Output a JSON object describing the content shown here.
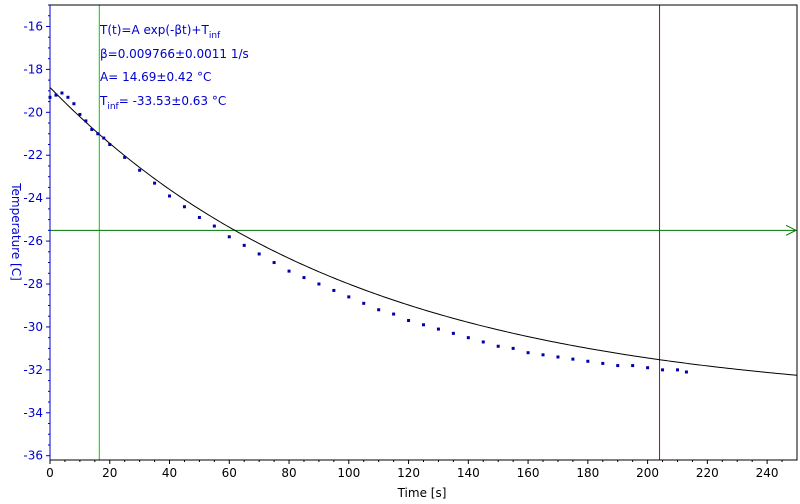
{
  "chart_data": {
    "type": "scatter",
    "xlabel": "Time [s]",
    "ylabel": "Temperature [C]",
    "xlim": [
      0,
      250
    ],
    "ylim": [
      -36.2,
      -15
    ],
    "x_ticks": [
      0,
      20,
      40,
      60,
      80,
      100,
      120,
      140,
      160,
      180,
      200,
      220,
      240
    ],
    "y_ticks": [
      -16,
      -18,
      -20,
      -22,
      -24,
      -26,
      -28,
      -30,
      -32,
      -34,
      -36
    ],
    "grid": false,
    "annotations": {
      "model_prefix": "T(t)=A exp(-βt)+T",
      "model_sub": "inf",
      "beta": "β=0.009766±0.0011 1/s",
      "amplitude": "A= 14.69±0.42 °C",
      "tinf_prefix": "T",
      "tinf_sub": "inf",
      "tinf_value": "= -33.53±0.63 °C"
    },
    "fit": {
      "A": 14.69,
      "beta": 0.009766,
      "T_inf": -33.53,
      "x_range": [
        0,
        250
      ],
      "color": "#000000"
    },
    "series": [
      {
        "color": "#0000aa",
        "x": [
          0,
          2,
          4,
          6,
          8,
          10,
          12,
          14,
          16,
          18,
          20,
          25,
          30,
          35,
          40,
          45,
          50,
          55,
          60,
          65,
          70,
          75,
          80,
          85,
          90,
          95,
          100,
          105,
          110,
          115,
          120,
          125,
          130,
          135,
          140,
          145,
          150,
          155,
          160,
          165,
          170,
          175,
          180,
          185,
          190,
          195,
          200,
          205,
          210,
          213
        ],
        "y": [
          -19.3,
          -19.2,
          -19.1,
          -19.3,
          -19.6,
          -20.1,
          -20.4,
          -20.8,
          -21.0,
          -21.2,
          -21.5,
          -22.1,
          -22.7,
          -23.3,
          -23.9,
          -24.4,
          -24.9,
          -25.3,
          -25.8,
          -26.2,
          -26.6,
          -27.0,
          -27.4,
          -27.7,
          -28.0,
          -28.3,
          -28.6,
          -28.9,
          -29.2,
          -29.4,
          -29.7,
          -29.9,
          -30.1,
          -30.3,
          -30.5,
          -30.7,
          -30.9,
          -31.0,
          -31.2,
          -31.3,
          -31.4,
          -31.5,
          -31.6,
          -31.7,
          -31.8,
          -31.8,
          -31.9,
          -32.0,
          -32.0,
          -32.1
        ]
      }
    ],
    "cursors": {
      "vertical": [
        {
          "x": 16.5,
          "color": "#00cc00"
        },
        {
          "x": 204,
          "color": "#cc0000"
        }
      ],
      "horizontal": [
        {
          "y": -25.5,
          "color": "#007700",
          "arrow": true
        }
      ]
    },
    "colors": {
      "axis": "#0000cc",
      "tick_label": "#0000cc",
      "frame": "#000000"
    }
  }
}
